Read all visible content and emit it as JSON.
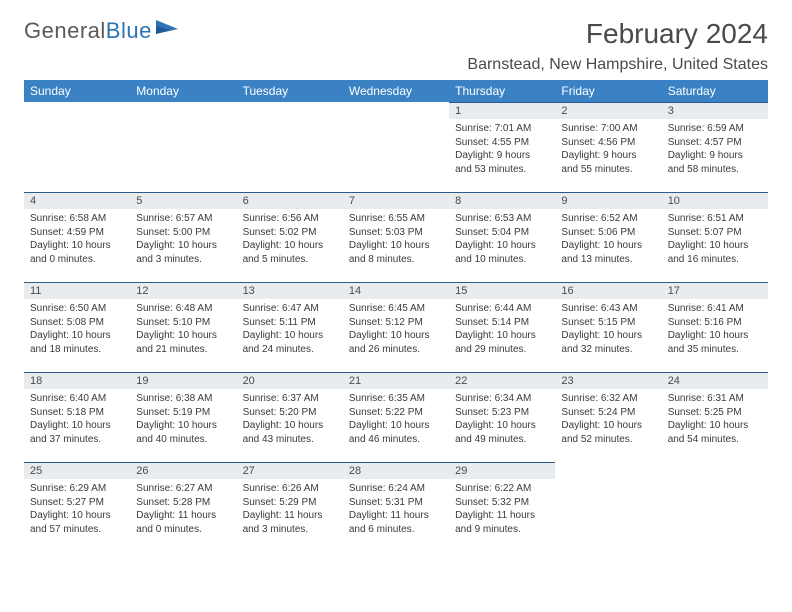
{
  "brand": {
    "name1": "General",
    "name2": "Blue"
  },
  "title": "February 2024",
  "location": "Barnstead, New Hampshire, United States",
  "colors": {
    "header_bg": "#3b82c4",
    "header_text": "#ffffff",
    "daynum_bg": "#e9ecef",
    "row_border": "#2d5a8a",
    "text": "#3a3a3a",
    "brand_gray": "#5a5a5a",
    "brand_blue": "#2d74b5",
    "page_bg": "#ffffff"
  },
  "typography": {
    "title_fontsize": 28,
    "location_fontsize": 16,
    "weekday_fontsize": 12,
    "daynum_fontsize": 11,
    "body_fontsize": 10
  },
  "weekdays": [
    "Sunday",
    "Monday",
    "Tuesday",
    "Wednesday",
    "Thursday",
    "Friday",
    "Saturday"
  ],
  "weeks": [
    [
      null,
      null,
      null,
      null,
      {
        "n": "1",
        "sunrise": "Sunrise: 7:01 AM",
        "sunset": "Sunset: 4:55 PM",
        "daylight": "Daylight: 9 hours and 53 minutes."
      },
      {
        "n": "2",
        "sunrise": "Sunrise: 7:00 AM",
        "sunset": "Sunset: 4:56 PM",
        "daylight": "Daylight: 9 hours and 55 minutes."
      },
      {
        "n": "3",
        "sunrise": "Sunrise: 6:59 AM",
        "sunset": "Sunset: 4:57 PM",
        "daylight": "Daylight: 9 hours and 58 minutes."
      }
    ],
    [
      {
        "n": "4",
        "sunrise": "Sunrise: 6:58 AM",
        "sunset": "Sunset: 4:59 PM",
        "daylight": "Daylight: 10 hours and 0 minutes."
      },
      {
        "n": "5",
        "sunrise": "Sunrise: 6:57 AM",
        "sunset": "Sunset: 5:00 PM",
        "daylight": "Daylight: 10 hours and 3 minutes."
      },
      {
        "n": "6",
        "sunrise": "Sunrise: 6:56 AM",
        "sunset": "Sunset: 5:02 PM",
        "daylight": "Daylight: 10 hours and 5 minutes."
      },
      {
        "n": "7",
        "sunrise": "Sunrise: 6:55 AM",
        "sunset": "Sunset: 5:03 PM",
        "daylight": "Daylight: 10 hours and 8 minutes."
      },
      {
        "n": "8",
        "sunrise": "Sunrise: 6:53 AM",
        "sunset": "Sunset: 5:04 PM",
        "daylight": "Daylight: 10 hours and 10 minutes."
      },
      {
        "n": "9",
        "sunrise": "Sunrise: 6:52 AM",
        "sunset": "Sunset: 5:06 PM",
        "daylight": "Daylight: 10 hours and 13 minutes."
      },
      {
        "n": "10",
        "sunrise": "Sunrise: 6:51 AM",
        "sunset": "Sunset: 5:07 PM",
        "daylight": "Daylight: 10 hours and 16 minutes."
      }
    ],
    [
      {
        "n": "11",
        "sunrise": "Sunrise: 6:50 AM",
        "sunset": "Sunset: 5:08 PM",
        "daylight": "Daylight: 10 hours and 18 minutes."
      },
      {
        "n": "12",
        "sunrise": "Sunrise: 6:48 AM",
        "sunset": "Sunset: 5:10 PM",
        "daylight": "Daylight: 10 hours and 21 minutes."
      },
      {
        "n": "13",
        "sunrise": "Sunrise: 6:47 AM",
        "sunset": "Sunset: 5:11 PM",
        "daylight": "Daylight: 10 hours and 24 minutes."
      },
      {
        "n": "14",
        "sunrise": "Sunrise: 6:45 AM",
        "sunset": "Sunset: 5:12 PM",
        "daylight": "Daylight: 10 hours and 26 minutes."
      },
      {
        "n": "15",
        "sunrise": "Sunrise: 6:44 AM",
        "sunset": "Sunset: 5:14 PM",
        "daylight": "Daylight: 10 hours and 29 minutes."
      },
      {
        "n": "16",
        "sunrise": "Sunrise: 6:43 AM",
        "sunset": "Sunset: 5:15 PM",
        "daylight": "Daylight: 10 hours and 32 minutes."
      },
      {
        "n": "17",
        "sunrise": "Sunrise: 6:41 AM",
        "sunset": "Sunset: 5:16 PM",
        "daylight": "Daylight: 10 hours and 35 minutes."
      }
    ],
    [
      {
        "n": "18",
        "sunrise": "Sunrise: 6:40 AM",
        "sunset": "Sunset: 5:18 PM",
        "daylight": "Daylight: 10 hours and 37 minutes."
      },
      {
        "n": "19",
        "sunrise": "Sunrise: 6:38 AM",
        "sunset": "Sunset: 5:19 PM",
        "daylight": "Daylight: 10 hours and 40 minutes."
      },
      {
        "n": "20",
        "sunrise": "Sunrise: 6:37 AM",
        "sunset": "Sunset: 5:20 PM",
        "daylight": "Daylight: 10 hours and 43 minutes."
      },
      {
        "n": "21",
        "sunrise": "Sunrise: 6:35 AM",
        "sunset": "Sunset: 5:22 PM",
        "daylight": "Daylight: 10 hours and 46 minutes."
      },
      {
        "n": "22",
        "sunrise": "Sunrise: 6:34 AM",
        "sunset": "Sunset: 5:23 PM",
        "daylight": "Daylight: 10 hours and 49 minutes."
      },
      {
        "n": "23",
        "sunrise": "Sunrise: 6:32 AM",
        "sunset": "Sunset: 5:24 PM",
        "daylight": "Daylight: 10 hours and 52 minutes."
      },
      {
        "n": "24",
        "sunrise": "Sunrise: 6:31 AM",
        "sunset": "Sunset: 5:25 PM",
        "daylight": "Daylight: 10 hours and 54 minutes."
      }
    ],
    [
      {
        "n": "25",
        "sunrise": "Sunrise: 6:29 AM",
        "sunset": "Sunset: 5:27 PM",
        "daylight": "Daylight: 10 hours and 57 minutes."
      },
      {
        "n": "26",
        "sunrise": "Sunrise: 6:27 AM",
        "sunset": "Sunset: 5:28 PM",
        "daylight": "Daylight: 11 hours and 0 minutes."
      },
      {
        "n": "27",
        "sunrise": "Sunrise: 6:26 AM",
        "sunset": "Sunset: 5:29 PM",
        "daylight": "Daylight: 11 hours and 3 minutes."
      },
      {
        "n": "28",
        "sunrise": "Sunrise: 6:24 AM",
        "sunset": "Sunset: 5:31 PM",
        "daylight": "Daylight: 11 hours and 6 minutes."
      },
      {
        "n": "29",
        "sunrise": "Sunrise: 6:22 AM",
        "sunset": "Sunset: 5:32 PM",
        "daylight": "Daylight: 11 hours and 9 minutes."
      },
      null,
      null
    ]
  ]
}
